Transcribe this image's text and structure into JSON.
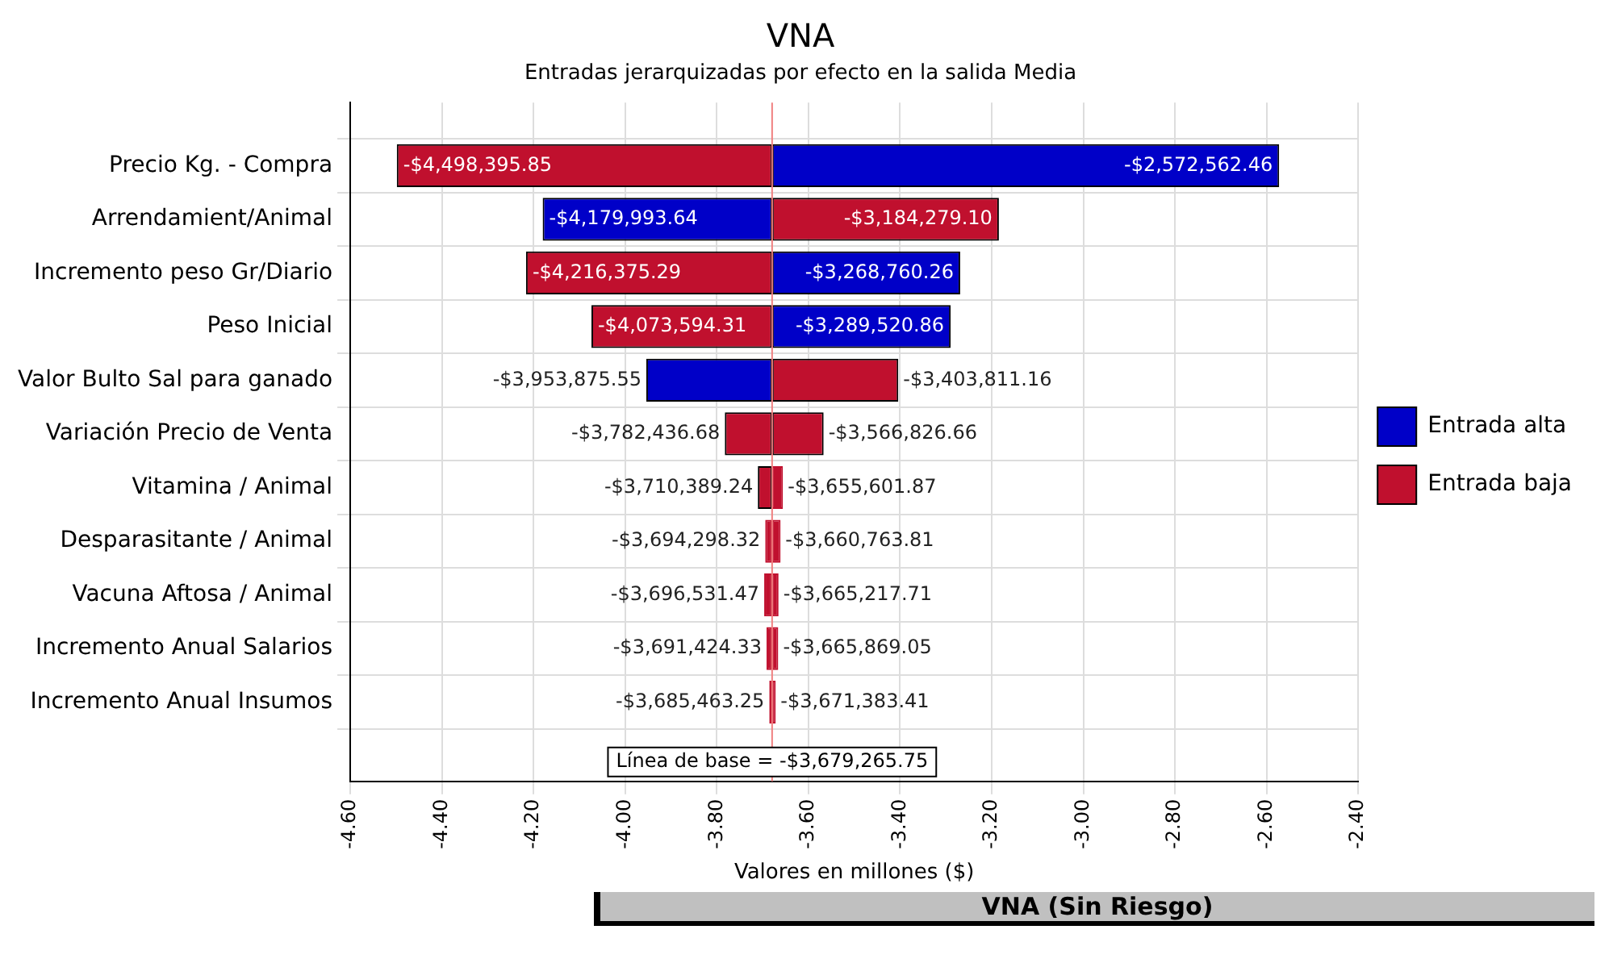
{
  "chart_data": {
    "type": "bar",
    "orientation": "horizontal",
    "title": "VNA",
    "subtitle": "Entradas jerarquizadas por efecto en la salida Media",
    "xlabel": "Valores en millones ($)",
    "categories": [
      "Precio Kg. - Compra",
      "Arrendamient/Animal",
      "Incremento peso Gr/Diario",
      "Peso Inicial",
      "Valor Bulto Sal para ganado",
      "Variación Precio de Venta",
      "Vitamina / Animal",
      "Desparasitante / Animal",
      "Vacuna Aftosa / Animal",
      "Incremento Anual Salarios",
      "Incremento Anual Insumos"
    ],
    "series": [
      {
        "name": "Entrada alta",
        "color": "#0000c8",
        "colors": [
          "#0000c8",
          "#0000c8",
          "#0000c8",
          "#0000c8",
          "#0000c8",
          "#c0102e",
          "#c0102e",
          "#c0102e",
          "#c0102e",
          "#c0102e",
          "#c0102e"
        ],
        "base": [
          -3.67926575,
          -3.67926575,
          -3.67926575,
          -3.67926575,
          -3.67926575,
          -3.67926575,
          -3.67926575,
          -3.67926575,
          -3.67926575,
          -3.67926575,
          -3.67926575
        ],
        "values": [
          1.10670329,
          -0.50072789,
          0.41050549,
          0.38974489,
          -0.2746098,
          0.11243909,
          0.02366388,
          0.01850194,
          0.01404804,
          0.0133967,
          0.00788234
        ]
      },
      {
        "name": "Entrada baja",
        "color": "#c0102e",
        "base": [
          -3.67926575,
          -3.67926575,
          -3.67926575,
          -3.67926575,
          -3.67926575,
          -3.67926575,
          -3.67926575,
          -3.67926575,
          -3.67926575,
          -3.67926575,
          -3.67926575
        ],
        "values": [
          -0.8191301,
          0.49498665,
          -0.53710954,
          -0.39432856,
          0.27545459,
          -0.10317093,
          -0.03112349,
          -0.01503257,
          -0.01726572,
          -0.01215858,
          -0.0061975
        ]
      }
    ],
    "xlim": [
      -4.6,
      -2.4
    ],
    "xticks": [
      {
        "value": -4.6,
        "label": "-4.60"
      },
      {
        "value": -4.4,
        "label": "-4.40"
      },
      {
        "value": -4.2,
        "label": "-4.20"
      },
      {
        "value": -4.0,
        "label": "-4.00"
      },
      {
        "value": -3.8,
        "label": "-3.80"
      },
      {
        "value": -3.6,
        "label": "-3.60"
      },
      {
        "value": -3.4,
        "label": "-3.40"
      },
      {
        "value": -3.2,
        "label": "-3.20"
      },
      {
        "value": -3.0,
        "label": "-3.00"
      },
      {
        "value": -2.8,
        "label": "-2.80"
      },
      {
        "value": -2.6,
        "label": "-2.60"
      },
      {
        "value": -2.4,
        "label": "-2.40"
      }
    ],
    "ref_lines": [
      {
        "axis": "x",
        "value": -3.67926575,
        "label": "Línea de base = -$3,679,265.75",
        "color": "#f08080"
      }
    ],
    "grid": true,
    "legend": "right",
    "annotations": [
      {
        "text": "-$2,572,562.46",
        "x": -2.57256246,
        "y": "Precio Kg. - Compra"
      },
      {
        "text": "-$4,498,395.85",
        "x": -4.49839585,
        "y": "Precio Kg. - Compra"
      },
      {
        "text": "-$4,179,993.64",
        "x": -4.17999364,
        "y": "Arrendamient/Animal"
      },
      {
        "text": "-$3,184,279.10",
        "x": -3.1842791,
        "y": "Arrendamient/Animal"
      },
      {
        "text": "-$3,268,760.26",
        "x": -3.26876026,
        "y": "Incremento peso Gr/Diario"
      },
      {
        "text": "-$4,216,375.29",
        "x": -4.21637529,
        "y": "Incremento peso Gr/Diario"
      },
      {
        "text": "-$3,289,520.86",
        "x": -3.28952086,
        "y": "Peso Inicial"
      },
      {
        "text": "-$4,073,594.31",
        "x": -4.07359431,
        "y": "Peso Inicial"
      },
      {
        "text": "-$3,953,875.55",
        "x": -3.95387555,
        "y": "Valor Bulto Sal para ganado"
      },
      {
        "text": "-$3,403,811.16",
        "x": -3.40381116,
        "y": "Valor Bulto Sal para ganado"
      },
      {
        "text": "-$3,566,826.66",
        "x": -3.56682666,
        "y": "Variación Precio de Venta"
      },
      {
        "text": "-$3,782,436.68",
        "x": -3.78243668,
        "y": "Variación Precio de Venta"
      },
      {
        "text": "-$3,655,601.87",
        "x": -3.65560187,
        "y": "Vitamina / Animal"
      },
      {
        "text": "-$3,710,389.24",
        "x": -3.71038924,
        "y": "Vitamina / Animal"
      },
      {
        "text": "-$3,660,763.81",
        "x": -3.66076381,
        "y": "Desparasitante / Animal"
      },
      {
        "text": "-$3,694,298.32",
        "x": -3.69429832,
        "y": "Desparasitante / Animal"
      },
      {
        "text": "-$3,665,217.71",
        "x": -3.66521771,
        "y": "Vacuna Aftosa / Animal"
      },
      {
        "text": "-$3,696,531.47",
        "x": -3.69653147,
        "y": "Vacuna Aftosa / Animal"
      },
      {
        "text": "-$3,665,869.05",
        "x": -3.66586905,
        "y": "Incremento Anual Salarios"
      },
      {
        "text": "-$3,691,424.33",
        "x": -3.69142433,
        "y": "Incremento Anual Salarios"
      },
      {
        "text": "-$3,671,383.41",
        "x": -3.67138341,
        "y": "Incremento Anual Insumos"
      },
      {
        "text": "-$3,685,463.25",
        "x": -3.68546325,
        "y": "Incremento Anual Insumos"
      },
      "VNA (Sin Riesgo)"
    ]
  }
}
